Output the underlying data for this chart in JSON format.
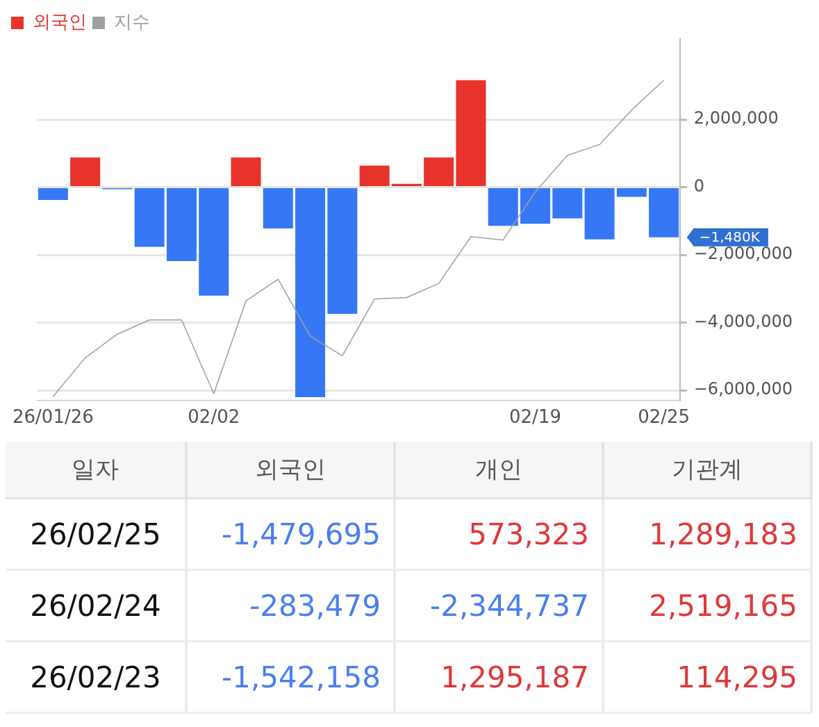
{
  "chart_data": [
    {
      "type": "bar",
      "categories": [
        "26/01/26",
        null,
        null,
        null,
        null,
        "02/02",
        null,
        null,
        null,
        null,
        null,
        null,
        null,
        null,
        null,
        "02/19",
        null,
        null,
        null,
        "02/25"
      ],
      "series": [
        {
          "name": "외국인",
          "type": "bar",
          "color": "#e8322c",
          "colors": [
            "#3677f6",
            "#e8322c",
            "#3677f6",
            "#3677f6",
            "#3677f6",
            "#3677f6",
            "#e8322c",
            "#3677f6",
            "#3677f6",
            "#3677f6",
            "#e8322c",
            "#e8322c",
            "#e8322c",
            "#e8322c",
            "#3677f6",
            "#3677f6",
            "#3677f6",
            "#3677f6",
            "#3677f6",
            "#3677f6"
          ],
          "values": [
            -380000,
            880000,
            -60000,
            -1760000,
            -2180000,
            -3200000,
            880000,
            -1220000,
            -6200000,
            -3740000,
            640000,
            100000,
            880000,
            3160000,
            -1140000,
            -1080000,
            -920000,
            -1542158,
            -283479,
            -1479695
          ]
        },
        {
          "name": "지수",
          "type": "line",
          "color": "#a0a0a0",
          "values": [
            -6180000,
            -5040000,
            -4340000,
            -3920000,
            -3920000,
            -6100000,
            -3360000,
            -2720000,
            -4400000,
            -4980000,
            -3300000,
            -3260000,
            -2840000,
            -1460000,
            -1560000,
            -140000,
            940000,
            1260000,
            2280000,
            3160000
          ]
        }
      ],
      "ylim": [
        -6300000,
        4380000
      ],
      "yticks": [
        {
          "value": -6000000,
          "label": "−6,000,000"
        },
        {
          "value": -4000000,
          "label": "−4,000,000"
        },
        {
          "value": -2000000,
          "label": "−2,000,000"
        },
        0,
        {
          "value": 2000000,
          "label": "2,000,000"
        }
      ],
      "annotations": [
        {
          "text": "−1,480K",
          "x": "02/25",
          "y": -1479695
        }
      ],
      "grid": "y",
      "legend": "top left",
      "marker": "none"
    },
    {
      "type": "other",
      "ylabel": "일자",
      "categories": [
        "외국인",
        "개인",
        "기관계"
      ],
      "y_categories": [
        "26/02/25",
        "26/02/24",
        "26/02/23"
      ],
      "cell_labels": [
        [
          "-1,479,695",
          "573,323",
          "1,289,183"
        ],
        [
          "-283,479",
          "-2,344,737",
          "2,519,165"
        ],
        [
          "-1,542,158",
          "1,295,187",
          "114,295"
        ]
      ],
      "colors": [
        [
          "#4a7fee",
          "#e0383a",
          "#e0383a"
        ],
        [
          "#4a7fee",
          "#4a7fee",
          "#e0383a"
        ],
        [
          "#4a7fee",
          "#e0383a",
          "#e0383a"
        ]
      ]
    }
  ]
}
